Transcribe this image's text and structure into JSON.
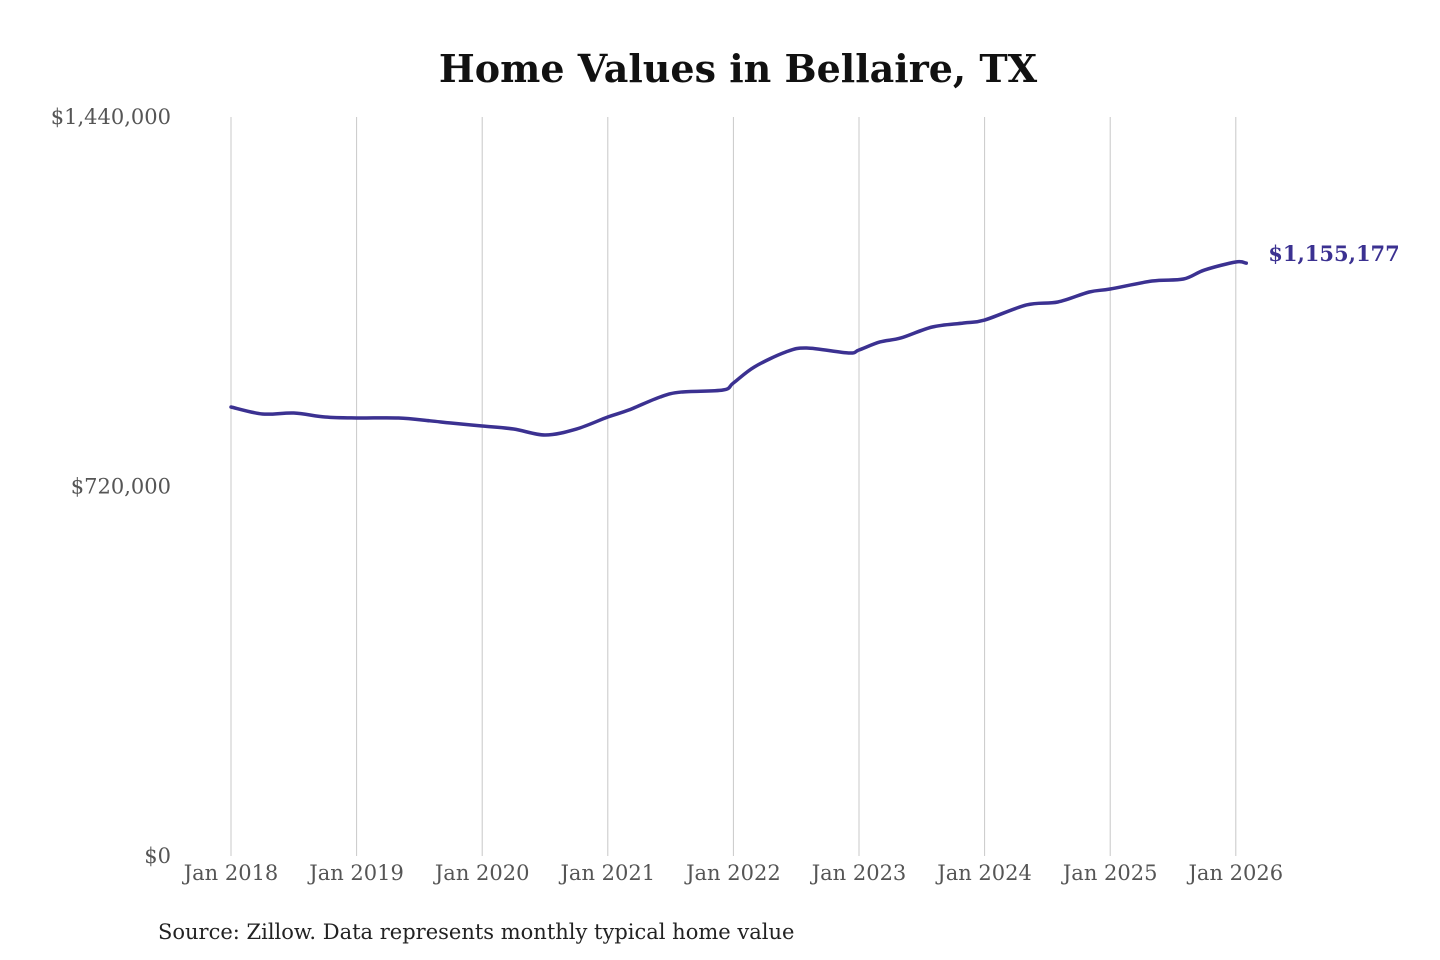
{
  "chart_data": {
    "type": "line",
    "title": "Home Values in Bellaire, TX",
    "source": "Source: Zillow. Data represents monthly typical home value",
    "xlabel": "",
    "ylabel": "",
    "ylim": [
      0,
      1440000
    ],
    "y_ticks": [
      {
        "value": 0,
        "label": "$0"
      },
      {
        "value": 720000,
        "label": "$720,000"
      },
      {
        "value": 1440000,
        "label": "$1,440,000"
      }
    ],
    "x_ticks": [
      {
        "date": "2018-01",
        "label": "Jan 2018"
      },
      {
        "date": "2019-01",
        "label": "Jan 2019"
      },
      {
        "date": "2020-01",
        "label": "Jan 2020"
      },
      {
        "date": "2021-01",
        "label": "Jan 2021"
      },
      {
        "date": "2022-01",
        "label": "Jan 2022"
      },
      {
        "date": "2023-01",
        "label": "Jan 2023"
      },
      {
        "date": "2024-01",
        "label": "Jan 2024"
      },
      {
        "date": "2025-01",
        "label": "Jan 2025"
      },
      {
        "date": "2026-01",
        "label": "Jan 2026"
      }
    ],
    "grid": "vertical",
    "line_color": "#3b3191",
    "end_label": "$1,155,177",
    "series": [
      {
        "points": [
          [
            "2018-01",
            874900
          ],
          [
            "2018-04",
            861300
          ],
          [
            "2018-07",
            863200
          ],
          [
            "2018-10",
            855400
          ],
          [
            "2019-01",
            853500
          ],
          [
            "2019-05",
            853500
          ],
          [
            "2019-08",
            848000
          ],
          [
            "2019-10",
            843700
          ],
          [
            "2020-01",
            837900
          ],
          [
            "2020-04",
            832000
          ],
          [
            "2020-07",
            820400
          ],
          [
            "2020-10",
            832000
          ],
          [
            "2021-01",
            855400
          ],
          [
            "2021-03",
            869000
          ],
          [
            "2021-06",
            894400
          ],
          [
            "2021-08",
            904000
          ],
          [
            "2021-12",
            908000
          ],
          [
            "2022-01",
            921700
          ],
          [
            "2022-03",
            952900
          ],
          [
            "2022-06",
            982100
          ],
          [
            "2022-08",
            989900
          ],
          [
            "2022-12",
            980200
          ],
          [
            "2023-01",
            986000
          ],
          [
            "2023-03",
            1001600
          ],
          [
            "2023-05",
            1009400
          ],
          [
            "2023-08",
            1030800
          ],
          [
            "2023-11",
            1038600
          ],
          [
            "2024-01",
            1044400
          ],
          [
            "2024-05",
            1073700
          ],
          [
            "2024-08",
            1079500
          ],
          [
            "2024-11",
            1099000
          ],
          [
            "2025-01",
            1104800
          ],
          [
            "2025-05",
            1120400
          ],
          [
            "2025-08",
            1124300
          ],
          [
            "2025-10",
            1141800
          ],
          [
            "2026-01",
            1157500
          ],
          [
            "2026-02",
            1155177
          ]
        ]
      }
    ]
  }
}
